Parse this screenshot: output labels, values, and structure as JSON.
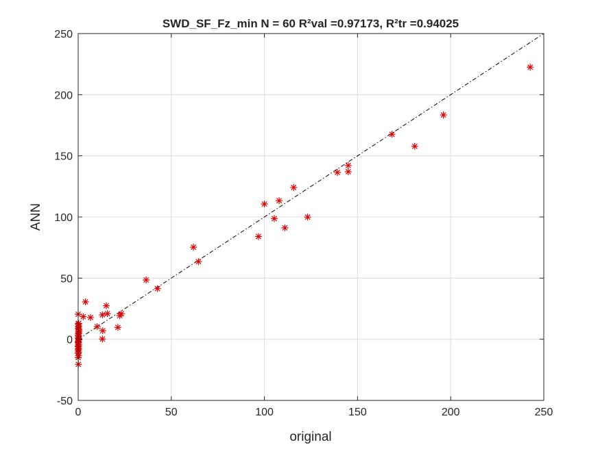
{
  "chart_data": {
    "type": "scatter",
    "title": "SWD_SF_Fz_min  N = 60 R²val =0.97173, R²tr =0.94025",
    "xlabel": "original",
    "ylabel": "ANN",
    "xlim": [
      0,
      250
    ],
    "ylim": [
      -50,
      250
    ],
    "xticks": [
      "0",
      "50",
      "100",
      "150",
      "200",
      "250"
    ],
    "yticks": [
      "-50",
      "0",
      "50",
      "100",
      "150",
      "200",
      "250"
    ],
    "grid": true,
    "reference_line": {
      "from": [
        0,
        0
      ],
      "to": [
        250,
        250
      ],
      "style": "dash-dot",
      "color": "#000000"
    },
    "marker": "asterisk",
    "marker_color": "#e00000",
    "points": [
      [
        242.7,
        222.5
      ],
      [
        196.1,
        183.4
      ],
      [
        180.7,
        157.8
      ],
      [
        168.5,
        167.6
      ],
      [
        145.0,
        142.1
      ],
      [
        145.0,
        137.0
      ],
      [
        139.2,
        136.4
      ],
      [
        115.7,
        124.1
      ],
      [
        107.9,
        113.3
      ],
      [
        100.0,
        110.6
      ],
      [
        105.3,
        98.7
      ],
      [
        111.0,
        91.1
      ],
      [
        123.2,
        99.9
      ],
      [
        96.8,
        84.0
      ],
      [
        61.9,
        75.3
      ],
      [
        64.6,
        63.5
      ],
      [
        36.5,
        48.5
      ],
      [
        42.6,
        41.4
      ],
      [
        3.9,
        30.6
      ],
      [
        15.1,
        27.4
      ],
      [
        6.6,
        17.8
      ],
      [
        15.7,
        20.9
      ],
      [
        13.0,
        20.0
      ],
      [
        22.3,
        19.3
      ],
      [
        23.2,
        20.9
      ],
      [
        0.0,
        20.5
      ],
      [
        2.7,
        18.5
      ],
      [
        10.2,
        10.3
      ],
      [
        21.3,
        9.7
      ],
      [
        13.2,
        7.0
      ],
      [
        13.0,
        0.2
      ],
      [
        0.0,
        12.5
      ],
      [
        0.2,
        10.2
      ],
      [
        0.3,
        8.0
      ],
      [
        0.1,
        6.0
      ],
      [
        0.0,
        4.3
      ],
      [
        0.2,
        2.5
      ],
      [
        0.0,
        1.0
      ],
      [
        0.3,
        -0.5
      ],
      [
        0.0,
        -1.8
      ],
      [
        0.1,
        -3.0
      ],
      [
        0.2,
        -4.5
      ],
      [
        0.0,
        -6.0
      ],
      [
        0.2,
        -7.5
      ],
      [
        0.1,
        -9.0
      ],
      [
        0.0,
        -11.5
      ],
      [
        0.2,
        -13.5
      ],
      [
        0.0,
        -15.0
      ],
      [
        0.1,
        -20.5
      ],
      [
        0.4,
        5.0
      ],
      [
        0.0,
        3.0
      ],
      [
        0.3,
        0.5
      ],
      [
        0.1,
        -2.5
      ],
      [
        0.2,
        11.0
      ],
      [
        0.0,
        9.0
      ],
      [
        0.5,
        7.0
      ],
      [
        0.1,
        -5.5
      ],
      [
        0.3,
        13.0
      ],
      [
        0.0,
        -8.0
      ],
      [
        0.2,
        -10.5
      ]
    ]
  }
}
